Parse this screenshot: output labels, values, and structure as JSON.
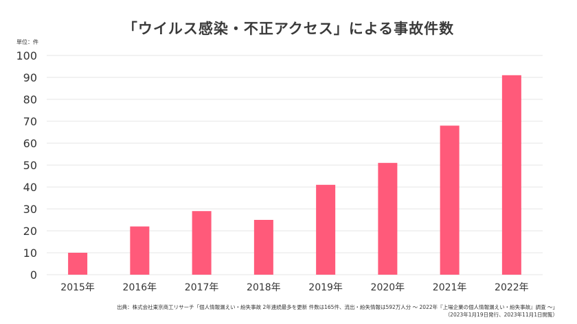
{
  "chart_data": {
    "type": "bar",
    "title": "「ウイルス感染・不正アクセス」による事故件数",
    "unit_label": "単位：件",
    "categories": [
      "2015年",
      "2016年",
      "2017年",
      "2018年",
      "2019年",
      "2020年",
      "2021年",
      "2022年"
    ],
    "values": [
      10,
      22,
      29,
      25,
      41,
      51,
      68,
      91
    ],
    "ylim": [
      0,
      100
    ],
    "yticks": [
      "0",
      "10",
      "20",
      "30",
      "40",
      "50",
      "60",
      "70",
      "80",
      "90",
      "100"
    ],
    "grid": true,
    "bar_color": "#ff5a7a",
    "grid_color": "#e6e6e6"
  },
  "source": {
    "line1": "出典：株式会社東京商工リサーチ「個人情報漏えい・紛失事故 2年連続最多を更新 件数は165件、流出・紛失情報は592万人分 ～ 2022年『上場企業の個人情報漏えい・紛失事故』調査 ～」",
    "line2": "（2023年1月19日発行、2023年11月1日閲覧）"
  }
}
